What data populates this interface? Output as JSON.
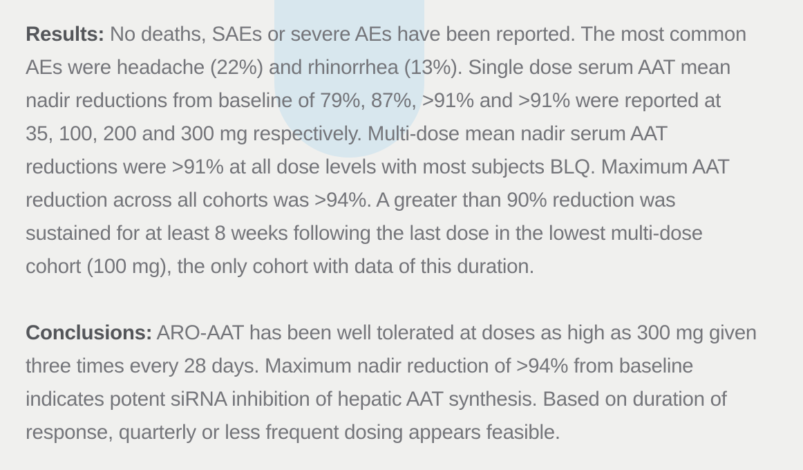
{
  "page": {
    "background_color": "#f0f0ee",
    "accent_shape_color": "#d8e7ee",
    "body_text_color": "#74757a",
    "label_text_color": "#54565a"
  },
  "abstract": {
    "results": {
      "label": "Results:",
      "lines": [
        "No deaths, SAEs or severe AEs have been reported. The most common",
        "AEs were headache (22%) and rhinorrhea (13%). Single dose serum AAT mean",
        "nadir reductions from baseline of 79%, 87%, >91% and >91% were reported at",
        "35, 100, 200 and 300 mg respectively. Multi-dose mean nadir serum AAT",
        "reductions were >91% at all dose levels with most subjects BLQ. Maximum AAT",
        "reduction across all cohorts was >94%. A greater than 90% reduction was",
        "sustained for at least 8 weeks following the last dose in the lowest multi-dose",
        "cohort (100 mg), the only cohort with data of this duration."
      ]
    },
    "conclusions": {
      "label": "Conclusions:",
      "lines": [
        "ARO-AAT has been well tolerated at doses as high as 300 mg given",
        "three times every 28 days. Maximum nadir reduction of >94% from baseline",
        "indicates potent siRNA inhibition of hepatic AAT synthesis. Based on duration of",
        "response, quarterly or less frequent dosing appears feasible."
      ]
    }
  }
}
